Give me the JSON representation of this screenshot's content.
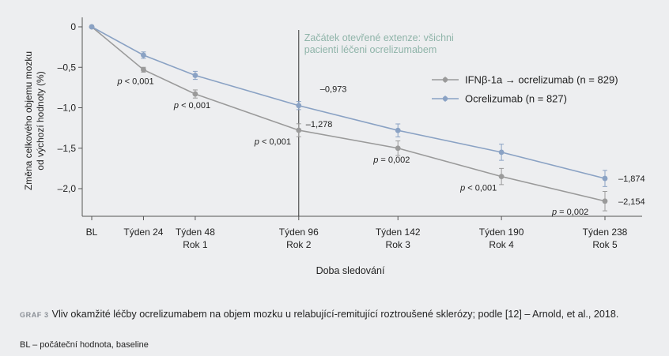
{
  "chart_data": {
    "type": "line",
    "title": "",
    "ylabel_lines": [
      "Změna celkového objemu mozku",
      "od výchozí hodnoty (%)"
    ],
    "xlabel": "Doba sledování",
    "ylim": [
      -2.3,
      0
    ],
    "yticks": [
      0,
      -0.5,
      -1.0,
      -1.5,
      -2.0
    ],
    "ytick_labels": [
      "0",
      "–0,5",
      "–1,0",
      "–1,5",
      "–2,0"
    ],
    "x": [
      0,
      24,
      48,
      96,
      142,
      190,
      238
    ],
    "xtick_labels": [
      [
        "BL"
      ],
      [
        "Týden 24"
      ],
      [
        "Týden 48",
        "Rok 1"
      ],
      [
        "Týden 96",
        "Rok 2"
      ],
      [
        "Týden 142",
        "Rok 3"
      ],
      [
        "Týden 190",
        "Rok 4"
      ],
      [
        "Týden 238",
        "Rok 5"
      ]
    ],
    "series": [
      {
        "name": "IFNβ-1a → ocrelizumab (n = 829)",
        "color": "#9a9a9a",
        "values": [
          0,
          -0.53,
          -0.83,
          -1.278,
          -1.5,
          -1.85,
          -2.154
        ],
        "err": [
          0,
          0.03,
          0.05,
          0.08,
          0.09,
          0.1,
          0.12
        ]
      },
      {
        "name": "Ocrelizumab (n = 827)",
        "color": "#8aa2c4",
        "values": [
          0,
          -0.35,
          -0.6,
          -0.973,
          -1.28,
          -1.55,
          -1.874
        ],
        "err": [
          0,
          0.04,
          0.05,
          0.05,
          0.08,
          0.1,
          0.1
        ]
      }
    ],
    "vline": {
      "x": 96,
      "label_lines": [
        "Začátek otevřené extenze: všichni",
        "pacienti léčeni ocrelizumabem"
      ],
      "color": "#8fb4a9"
    },
    "value_labels": [
      {
        "series": 1,
        "index": 3,
        "text": "–0,973"
      },
      {
        "series": 0,
        "index": 3,
        "text": "–1,278"
      },
      {
        "series": 1,
        "index": 6,
        "text": "–1,874"
      },
      {
        "series": 0,
        "index": 6,
        "text": "–2,154"
      }
    ],
    "p_values": [
      {
        "index": 1,
        "text": "< 0,001"
      },
      {
        "index": 2,
        "text": "< 0,001"
      },
      {
        "index": 3,
        "text": "< 0,001"
      },
      {
        "index": 4,
        "text": "= 0,002"
      },
      {
        "index": 5,
        "text": "< 0,001"
      },
      {
        "index": 6,
        "text": "= 0,002"
      }
    ],
    "legend_position": "top-right",
    "grid": false
  },
  "caption": {
    "label": "GRAF 3",
    "text": "Vliv okamžité léčby ocrelizumabem na objem mozku u relabující-remitující roztroušené sklerózy; podle [12] – Arnold, et al., 2018."
  },
  "footnote": "BL – počáteční hodnota, baseline"
}
